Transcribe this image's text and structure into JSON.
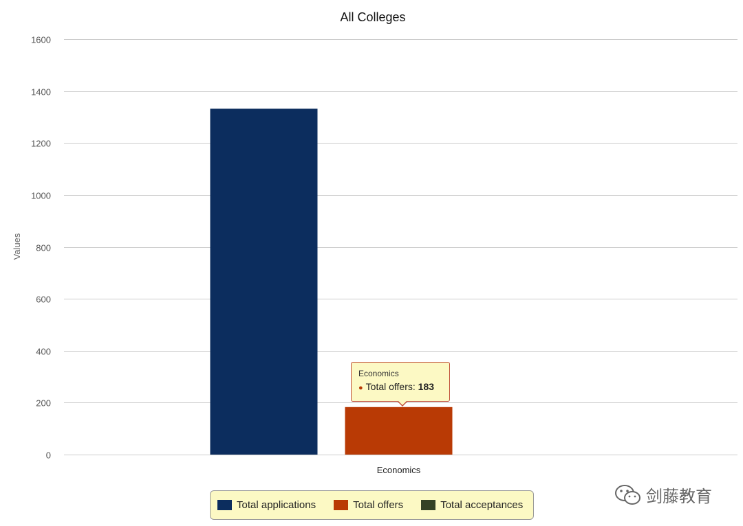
{
  "chart_data": {
    "type": "bar",
    "title": "All Colleges",
    "ylabel": "Values",
    "xlabel": "",
    "ylim": [
      0,
      1600
    ],
    "yticks": [
      0,
      200,
      400,
      600,
      800,
      1000,
      1200,
      1400,
      1600
    ],
    "categories": [
      "Economics"
    ],
    "series": [
      {
        "name": "Total applications",
        "values": [
          1332
        ],
        "color": "#0c2d5e"
      },
      {
        "name": "Total offers",
        "values": [
          183
        ],
        "color": "#b93a05"
      },
      {
        "name": "Total acceptances",
        "values": [
          0
        ],
        "color": "#344225"
      }
    ],
    "grid": true,
    "legend_position": "bottom-center"
  },
  "tooltip": {
    "category": "Economics",
    "series_label": "Total offers",
    "value": "183"
  },
  "watermark": {
    "text": "剑藤教育",
    "icon": "wechat-icon"
  }
}
